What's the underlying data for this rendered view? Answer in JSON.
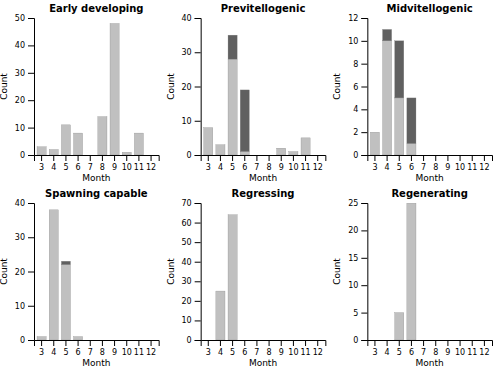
{
  "chart_data": [
    {
      "type": "bar",
      "title": "Early developing",
      "xlabel": "Month",
      "ylabel": "Count",
      "categories": [
        "3",
        "4",
        "5",
        "6",
        "7",
        "8",
        "9",
        "10",
        "11",
        "12"
      ],
      "series": [
        {
          "color": "#c0c0c0",
          "values": [
            3,
            2,
            11,
            8,
            0,
            14,
            48,
            1,
            8,
            0
          ]
        },
        {
          "color": "#606060",
          "values": [
            0,
            0,
            0,
            0,
            0,
            0,
            0,
            0,
            0,
            0
          ]
        }
      ],
      "stacked": true,
      "grid": false,
      "ylim": [
        0,
        50
      ],
      "yticks": [
        0,
        10,
        20,
        30,
        40,
        50
      ]
    },
    {
      "type": "bar",
      "title": "Previtellogenic",
      "xlabel": "Month",
      "ylabel": "Count",
      "categories": [
        "3",
        "4",
        "5",
        "6",
        "7",
        "8",
        "9",
        "10",
        "11",
        "12"
      ],
      "series": [
        {
          "color": "#c0c0c0",
          "values": [
            8,
            3,
            28,
            1,
            0,
            0,
            2,
            1,
            5,
            0
          ]
        },
        {
          "color": "#606060",
          "values": [
            0,
            0,
            7,
            18,
            0,
            0,
            0,
            0,
            0,
            0
          ]
        }
      ],
      "stacked": true,
      "grid": false,
      "ylim": [
        0,
        40
      ],
      "yticks": [
        0,
        10,
        20,
        30,
        40
      ]
    },
    {
      "type": "bar",
      "title": "Midvitellogenic",
      "xlabel": "Month",
      "ylabel": "Count",
      "categories": [
        "3",
        "4",
        "5",
        "6",
        "7",
        "8",
        "9",
        "10",
        "11",
        "12"
      ],
      "series": [
        {
          "color": "#c0c0c0",
          "values": [
            2,
            10,
            5,
            1,
            0,
            0,
            0,
            0,
            0,
            0
          ]
        },
        {
          "color": "#606060",
          "values": [
            0,
            1,
            5,
            4,
            0,
            0,
            0,
            0,
            0,
            0
          ]
        }
      ],
      "stacked": true,
      "grid": false,
      "ylim": [
        0,
        12
      ],
      "yticks": [
        0,
        2,
        4,
        6,
        8,
        10,
        12
      ]
    },
    {
      "type": "bar",
      "title": "Spawning capable",
      "xlabel": "Month",
      "ylabel": "Count",
      "categories": [
        "3",
        "4",
        "5",
        "6",
        "7",
        "8",
        "9",
        "10",
        "11",
        "12"
      ],
      "series": [
        {
          "color": "#c0c0c0",
          "values": [
            1,
            38,
            22,
            1,
            0,
            0,
            0,
            0,
            0,
            0
          ]
        },
        {
          "color": "#606060",
          "values": [
            0,
            0,
            1,
            0,
            0,
            0,
            0,
            0,
            0,
            0
          ]
        }
      ],
      "stacked": true,
      "grid": false,
      "ylim": [
        0,
        40
      ],
      "yticks": [
        0,
        10,
        20,
        30,
        40
      ]
    },
    {
      "type": "bar",
      "title": "Regressing",
      "xlabel": "Month",
      "ylabel": "Count",
      "categories": [
        "3",
        "4",
        "5",
        "6",
        "7",
        "8",
        "9",
        "10",
        "11",
        "12"
      ],
      "series": [
        {
          "color": "#c0c0c0",
          "values": [
            0,
            25,
            64,
            0,
            0,
            0,
            0,
            0,
            0,
            0
          ]
        },
        {
          "color": "#606060",
          "values": [
            0,
            0,
            0,
            0,
            0,
            0,
            0,
            0,
            0,
            0
          ]
        }
      ],
      "stacked": true,
      "grid": false,
      "ylim": [
        0,
        70
      ],
      "yticks": [
        0,
        10,
        20,
        30,
        40,
        50,
        60,
        70
      ]
    },
    {
      "type": "bar",
      "title": "Regenerating",
      "xlabel": "Month",
      "ylabel": "Count",
      "categories": [
        "3",
        "4",
        "5",
        "6",
        "7",
        "8",
        "9",
        "10",
        "11",
        "12"
      ],
      "series": [
        {
          "color": "#c0c0c0",
          "values": [
            0,
            0,
            5,
            25,
            0,
            0,
            0,
            0,
            0,
            0
          ]
        },
        {
          "color": "#606060",
          "values": [
            0,
            0,
            0,
            0,
            0,
            0,
            0,
            0,
            0,
            0
          ]
        }
      ],
      "stacked": true,
      "grid": false,
      "ylim": [
        0,
        25
      ],
      "yticks": [
        0,
        5,
        10,
        15,
        20,
        25
      ]
    }
  ]
}
